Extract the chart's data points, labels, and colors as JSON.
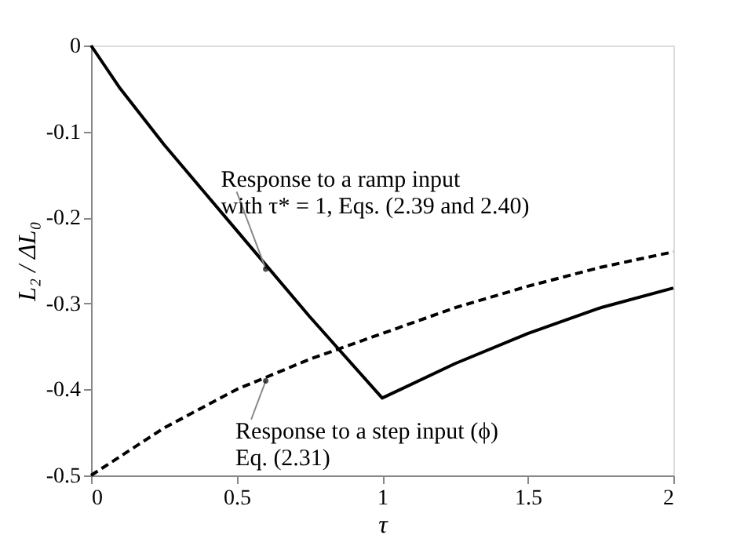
{
  "chart_data": {
    "type": "line",
    "xlabel": "τ",
    "ylabel": "L₂ / ΔL₀",
    "xlim": [
      0,
      2
    ],
    "xticks": [
      0,
      0.5,
      1,
      1.5,
      2
    ],
    "ylim": [
      -0.5,
      0
    ],
    "yticks": [
      -0.5,
      -0.4,
      -0.3,
      -0.2,
      -0.1,
      0
    ],
    "grid": false,
    "series": [
      {
        "color": "#000000",
        "line_style": "solid",
        "x": [
          0,
          0.1,
          0.25,
          0.5,
          0.75,
          1,
          1.25,
          1.5,
          1.75,
          2
        ],
        "values": [
          0,
          -0.05,
          -0.115,
          -0.215,
          -0.315,
          -0.41,
          -0.37,
          -0.335,
          -0.305,
          -0.282
        ]
      },
      {
        "color": "#000000",
        "line_style": "dashed",
        "x": [
          0,
          0.25,
          0.5,
          0.75,
          1,
          1.25,
          1.5,
          1.75,
          2
        ],
        "values": [
          -0.5,
          -0.445,
          -0.4,
          -0.365,
          -0.335,
          -0.305,
          -0.28,
          -0.258,
          -0.24
        ]
      }
    ],
    "annotations": [
      {
        "text": "Response to a ramp input\nwith τ* = 1, Eqs. (2.39 and 2.40)",
        "x": 0.6,
        "y": -0.26
      },
      {
        "text": "Response to a step input (ϕ)\nEq. (2.31)",
        "x": 0.6,
        "y": -0.39
      }
    ]
  }
}
